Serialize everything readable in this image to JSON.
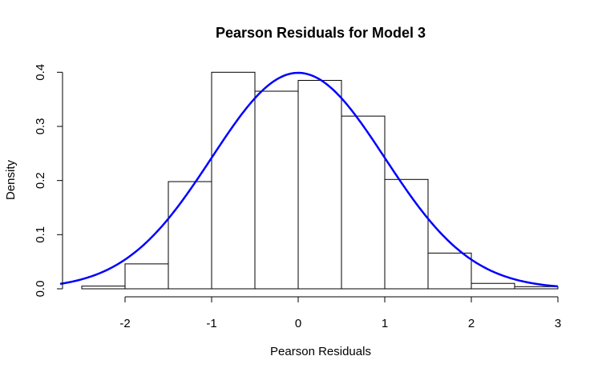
{
  "chart_data": {
    "type": "bar",
    "title": "Pearson Residuals for Model 3",
    "xlabel": "Pearson Residuals",
    "ylabel": "Density",
    "xlim": [
      -2.7,
      3.0
    ],
    "ylim": [
      0,
      0.4
    ],
    "x_ticks": [
      "-2",
      "-1",
      "0",
      "1",
      "2",
      "3"
    ],
    "x_tick_values": [
      -2,
      -1,
      0,
      1,
      2,
      3
    ],
    "y_ticks": [
      "0.0",
      "0.1",
      "0.2",
      "0.3",
      "0.4"
    ],
    "y_tick_values": [
      0.0,
      0.1,
      0.2,
      0.3,
      0.4
    ],
    "bins": [
      {
        "from": -2.5,
        "to": -2.0,
        "density": 0.005
      },
      {
        "from": -2.0,
        "to": -1.5,
        "density": 0.046
      },
      {
        "from": -1.5,
        "to": -1.0,
        "density": 0.198
      },
      {
        "from": -1.0,
        "to": -0.5,
        "density": 0.4
      },
      {
        "from": -0.5,
        "to": 0.0,
        "density": 0.365
      },
      {
        "from": 0.0,
        "to": 0.5,
        "density": 0.385
      },
      {
        "from": 0.5,
        "to": 1.0,
        "density": 0.319
      },
      {
        "from": 1.0,
        "to": 1.5,
        "density": 0.202
      },
      {
        "from": 1.5,
        "to": 2.0,
        "density": 0.066
      },
      {
        "from": 2.0,
        "to": 2.5,
        "density": 0.01
      },
      {
        "from": 2.5,
        "to": 3.0,
        "density": 0.004
      }
    ],
    "overlay_curve": {
      "type": "normal-density",
      "mean": 0,
      "sd": 1,
      "color": "#0000ff"
    },
    "grid": false,
    "legend": "none"
  }
}
